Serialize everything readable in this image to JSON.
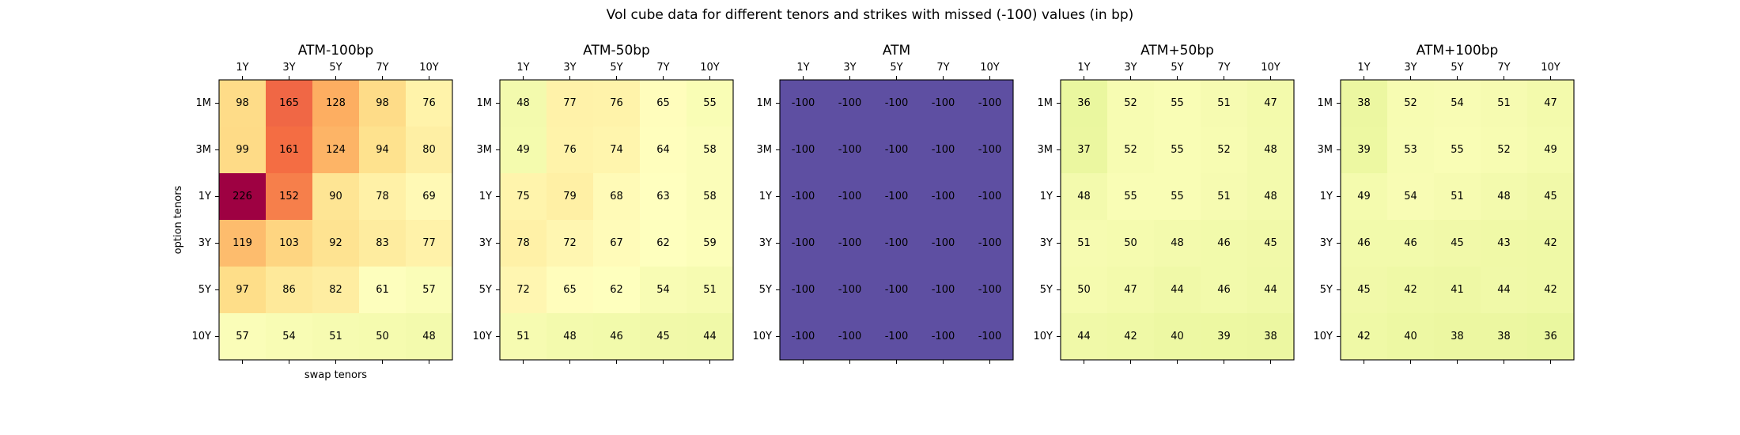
{
  "title": "Vol cube data for different tenors and strikes with missed (-100) values (in bp)",
  "chart_data": {
    "type": "heatmap",
    "title": "Vol cube data for different tenors and strikes with missed (-100) values (in bp)",
    "xlabel": "swap tenors",
    "ylabel": "option tenors",
    "x_tick_labels": [
      "1Y",
      "3Y",
      "5Y",
      "7Y",
      "10Y"
    ],
    "y_tick_labels": [
      "1M",
      "3M",
      "1Y",
      "3Y",
      "5Y",
      "10Y"
    ],
    "colormap": "Spectral_r",
    "color_range": [
      -100,
      226
    ],
    "panels": [
      {
        "title": "ATM-100bp",
        "values": [
          [
            98,
            165,
            128,
            98,
            76
          ],
          [
            99,
            161,
            124,
            94,
            80
          ],
          [
            226,
            152,
            90,
            78,
            69
          ],
          [
            119,
            103,
            92,
            83,
            77
          ],
          [
            97,
            86,
            82,
            61,
            57
          ],
          [
            57,
            54,
            51,
            50,
            48
          ]
        ]
      },
      {
        "title": "ATM-50bp",
        "values": [
          [
            48,
            77,
            76,
            65,
            55
          ],
          [
            49,
            76,
            74,
            64,
            58
          ],
          [
            75,
            79,
            68,
            63,
            58
          ],
          [
            78,
            72,
            67,
            62,
            59
          ],
          [
            72,
            65,
            62,
            54,
            51
          ],
          [
            51,
            48,
            46,
            45,
            44
          ]
        ]
      },
      {
        "title": "ATM",
        "values": [
          [
            -100,
            -100,
            -100,
            -100,
            -100
          ],
          [
            -100,
            -100,
            -100,
            -100,
            -100
          ],
          [
            -100,
            -100,
            -100,
            -100,
            -100
          ],
          [
            -100,
            -100,
            -100,
            -100,
            -100
          ],
          [
            -100,
            -100,
            -100,
            -100,
            -100
          ],
          [
            -100,
            -100,
            -100,
            -100,
            -100
          ]
        ]
      },
      {
        "title": "ATM+50bp",
        "values": [
          [
            36,
            52,
            55,
            51,
            47
          ],
          [
            37,
            52,
            55,
            52,
            48
          ],
          [
            48,
            55,
            55,
            51,
            48
          ],
          [
            51,
            50,
            48,
            46,
            45
          ],
          [
            50,
            47,
            44,
            46,
            44
          ],
          [
            44,
            42,
            40,
            39,
            38
          ]
        ]
      },
      {
        "title": "ATM+100bp",
        "values": [
          [
            38,
            52,
            54,
            51,
            47
          ],
          [
            39,
            53,
            55,
            52,
            49
          ],
          [
            49,
            54,
            51,
            48,
            45
          ],
          [
            46,
            46,
            45,
            43,
            42
          ],
          [
            45,
            42,
            41,
            44,
            42
          ],
          [
            42,
            40,
            38,
            38,
            36
          ]
        ]
      }
    ]
  }
}
